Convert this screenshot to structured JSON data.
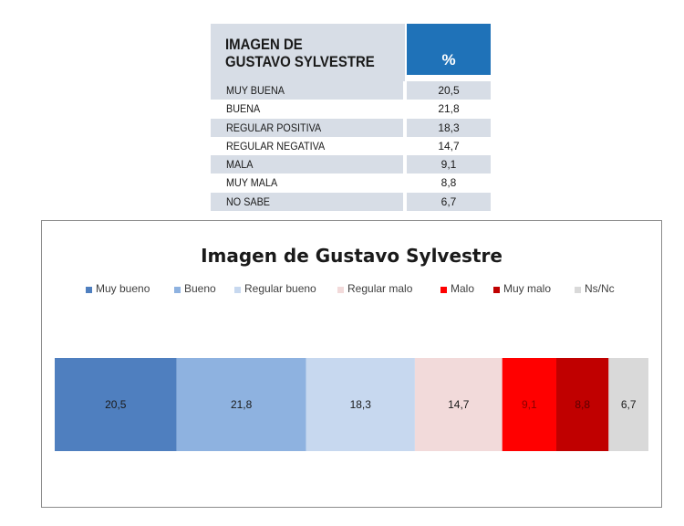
{
  "table": {
    "title_line1": "IMAGEN DE",
    "title_line2": "GUSTAVO SYLVESTRE",
    "pct_header": "%",
    "rows": [
      {
        "label": "MUY BUENA",
        "value": "20,5"
      },
      {
        "label": "BUENA",
        "value": "21,8"
      },
      {
        "label": "REGULAR POSITIVA",
        "value": "18,3"
      },
      {
        "label": "REGULAR NEGATIVA",
        "value": "14,7"
      },
      {
        "label": "MALA",
        "value": "9,1"
      },
      {
        "label": "MUY MALA",
        "value": "8,8"
      },
      {
        "label": "NO SABE",
        "value": "6,7"
      }
    ],
    "colors": {
      "header_fill": "#1f72b8",
      "row_shade": "#d7dde6"
    }
  },
  "chart_data": {
    "type": "bar",
    "orientation": "horizontal-stacked-100",
    "title": "Imagen de Gustavo Sylvestre",
    "legend_position": "top",
    "grid": false,
    "series": [
      {
        "name": "Muy bueno",
        "value": 20.5,
        "label": "20,5",
        "color": "#4f7fbf",
        "label_color": "#1a1a1a"
      },
      {
        "name": "Bueno",
        "value": 21.8,
        "label": "21,8",
        "color": "#8eb2e0",
        "label_color": "#1a1a1a"
      },
      {
        "name": "Regular bueno",
        "value": 18.3,
        "label": "18,3",
        "color": "#c7d8ef",
        "label_color": "#1a1a1a"
      },
      {
        "name": "Regular malo",
        "value": 14.7,
        "label": "14,7",
        "color": "#f2dada",
        "label_color": "#1a1a1a"
      },
      {
        "name": "Malo",
        "value": 9.1,
        "label": "9,1",
        "color": "#ff0000",
        "label_color": "#8a0000"
      },
      {
        "name": "Muy malo",
        "value": 8.8,
        "label": "8,8",
        "color": "#c00000",
        "label_color": "#5a0000"
      },
      {
        "name": "Ns/Nc",
        "value": 6.7,
        "label": "6,7",
        "color": "#d9d9d9",
        "label_color": "#1a1a1a"
      }
    ]
  }
}
